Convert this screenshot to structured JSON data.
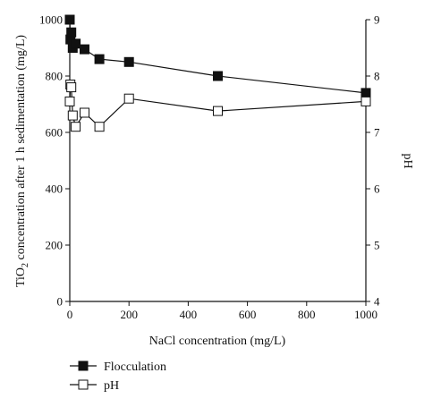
{
  "chart_data": {
    "type": "line",
    "xlabel": "NaCl concentration (mg/L)",
    "ylabel_left_pre": "TiO",
    "ylabel_left_sub": "2",
    "ylabel_left_post": " concentration after 1 h sedimentation (mg/L)",
    "ylabel_right": "pH",
    "xlim": [
      0,
      1000
    ],
    "ylim_left": [
      0,
      1000
    ],
    "ylim_right": [
      4,
      9
    ],
    "x_ticks": [
      "0",
      "200",
      "400",
      "600",
      "800",
      "1000"
    ],
    "y_left_ticks": [
      "0",
      "200",
      "400",
      "600",
      "800",
      "1000"
    ],
    "y_right_ticks": [
      "4",
      "5",
      "6",
      "7",
      "8",
      "9"
    ],
    "grid": false,
    "legend_position": "bottom-left",
    "series": [
      {
        "name": "Flocculation",
        "axis": "left",
        "marker": "filled-square",
        "color": "#111111",
        "x": [
          0,
          2,
          5,
          10,
          20,
          50,
          100,
          200,
          500,
          1000
        ],
        "y": [
          1000,
          930,
          955,
          900,
          915,
          895,
          860,
          850,
          800,
          740
        ]
      },
      {
        "name": "pH",
        "axis": "right",
        "marker": "open-square",
        "color": "#111111",
        "x": [
          0,
          2,
          5,
          10,
          20,
          50,
          100,
          200,
          500,
          1000
        ],
        "y": [
          7.55,
          7.85,
          7.8,
          7.3,
          7.1,
          7.35,
          7.1,
          7.6,
          7.38,
          7.55
        ]
      }
    ]
  }
}
